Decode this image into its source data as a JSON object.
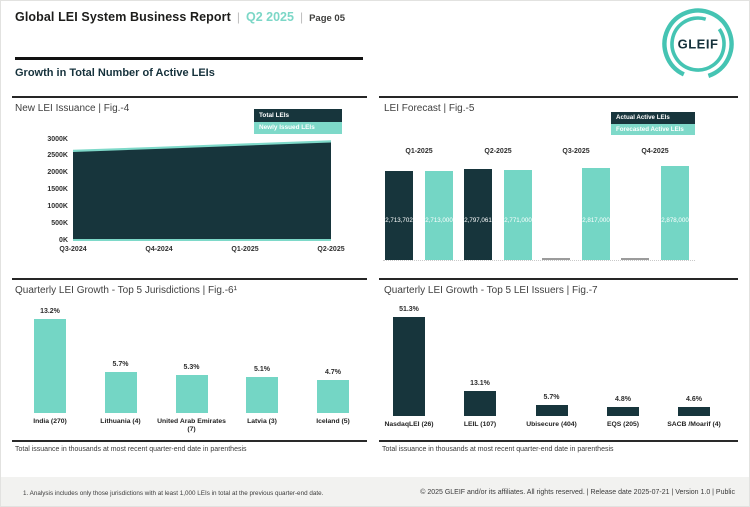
{
  "page": {
    "title": "Global LEI System Business Report",
    "quarter": "Q2 2025",
    "page_label": "Page 05",
    "separator": "|",
    "section_heading": "Growth in Total Number of Active LEIs",
    "logo_text": "GLEIF",
    "footer": {
      "footnote": "1. Analysis includes only those jurisdictions with at least 1,000 LEIs in total at the previous quarter-end date.",
      "copyright": "© 2025 GLEIF and/or its affiliates. All rights reserved.  | Release date 2025-07-21 | Version 1.0 | Public"
    }
  },
  "colors": {
    "dark_teal": "#17353c",
    "light_teal": "#74d6c5",
    "area_teal": "#7ed9c9",
    "accent_teal": "#7cd7c7",
    "no_data_gray": "#9b9b9b"
  },
  "chart_data": [
    {
      "id": "new_lei_issuance",
      "type": "area",
      "title": "New LEI Issuance | Fig.-4",
      "categories": [
        "Q3-2024",
        "Q4-2024",
        "Q1-2025",
        "Q2-2025"
      ],
      "series": [
        {
          "name": "Total LEIs",
          "values": [
            2710000,
            2800000,
            2900000,
            2990000
          ]
        },
        {
          "name": "Newly Issued LEIs",
          "values": [
            60000,
            60000,
            60000,
            60000
          ]
        }
      ],
      "y_ticks": [
        "3000K",
        "2500K",
        "2000K",
        "1500K",
        "1000K",
        "500K",
        "0K"
      ],
      "ylim": [
        0,
        3000000
      ],
      "legend_position": "top-right",
      "grid": false
    },
    {
      "id": "lei_forecast",
      "type": "bar",
      "title": "LEI Forecast | Fig.-5",
      "categories": [
        "Q1-2025",
        "Q2-2025",
        "Q3-2025",
        "Q4-2025"
      ],
      "series": [
        {
          "name": "Actual Active LEIs",
          "values": [
            2713702,
            2797061,
            null,
            null
          ],
          "labels": [
            "2,713,702",
            "2,797,061",
            "",
            ""
          ]
        },
        {
          "name": "Forecasted Active LEIs",
          "values": [
            2713000,
            2771000,
            2817000,
            2878000
          ],
          "labels": [
            "2,713,000",
            "2,771,000",
            "2,817,000",
            "2,878,000"
          ]
        }
      ],
      "legend_position": "top-right",
      "ylim": [
        0,
        2878000
      ]
    },
    {
      "id": "growth_top5_jurisdictions",
      "type": "bar",
      "title": "Quarterly LEI Growth - Top 5 Jurisdictions | Fig.-6¹",
      "categories": [
        "India (270)",
        "Lithuania (4)",
        "United Arab Emirates (7)",
        "Latvia (3)",
        "Iceland (5)"
      ],
      "values": [
        13.2,
        5.7,
        5.3,
        5.1,
        4.7
      ],
      "labels": [
        "13.2%",
        "5.7%",
        "5.3%",
        "5.1%",
        "4.7%"
      ],
      "footnote": "Total issuance in thousands at most recent quarter-end date in parenthesis"
    },
    {
      "id": "growth_top5_issuers",
      "type": "bar",
      "title": "Quarterly LEI Growth - Top 5 LEI Issuers | Fig.-7",
      "categories": [
        "NasdaqLEI (26)",
        "LEIL (107)",
        "Ubisecure (404)",
        "EQS (205)",
        "SACB /Moarif (4)"
      ],
      "values": [
        51.3,
        13.1,
        5.7,
        4.8,
        4.6
      ],
      "labels": [
        "51.3%",
        "13.1%",
        "5.7%",
        "4.8%",
        "4.6%"
      ],
      "footnote": "Total issuance in thousands at most recent quarter-end date in parenthesis"
    }
  ]
}
